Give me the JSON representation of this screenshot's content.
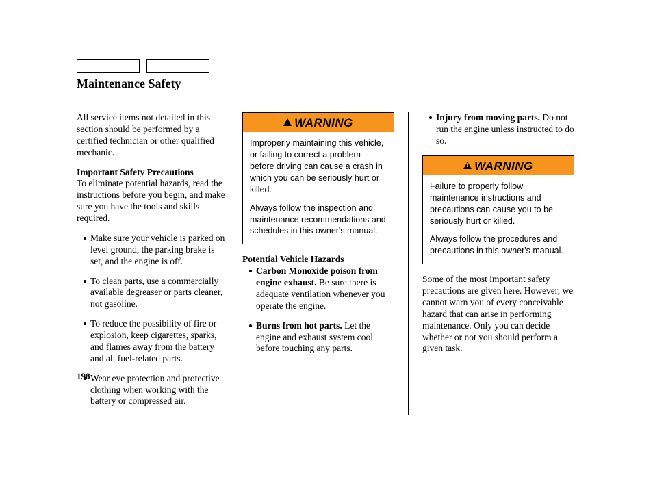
{
  "title": "Maintenance Safety",
  "page_number": "198",
  "colors": {
    "warning_bg": "#f7941d",
    "text": "#000000",
    "page_bg": "#ffffff"
  },
  "col1": {
    "intro": "All service items not detailed in this section should be performed by a certified technician or other qualified mechanic.",
    "precautions_head": "Important Safety Precautions",
    "precautions_body": "To eliminate potential hazards, read the instructions before you begin, and make sure you have the tools and skills required.",
    "bullets": [
      "Make sure your vehicle is parked on level ground, the parking brake is set, and the engine is off.",
      "To clean parts, use a commercially available degreaser or parts cleaner, not gasoline.",
      "To reduce the possibility of fire or explosion, keep cigarettes, sparks, and flames away from the battery and all fuel-related parts.",
      "Wear eye protection and protective clothing when working with the battery or compressed air."
    ]
  },
  "col2": {
    "warning_label": "WARNING",
    "warning_p1": "Improperly maintaining this vehicle, or failing to correct a problem before driving can cause a crash in which you can be seriously hurt or killed.",
    "warning_p2": "Always follow the inspection and maintenance recommendations and schedules in this owner's manual.",
    "hazards_head": "Potential Vehicle Hazards",
    "haz1_bold": "Carbon Monoxide poison from engine exhaust.",
    "haz1_rest": " Be sure there is adequate ventilation whenever you operate the engine.",
    "haz2_bold": "Burns from hot parts.",
    "haz2_rest": " Let the engine and exhaust system cool before touching any parts."
  },
  "col3": {
    "haz3_bold": "Injury from moving parts.",
    "haz3_rest": " Do not run the engine unless instructed to do so.",
    "warning_label": "WARNING",
    "warning_p1": "Failure to properly follow maintenance instructions and precautions can cause you to be seriously hurt or killed.",
    "warning_p2": "Always follow the procedures and precautions in this owner's manual.",
    "closing": "Some of the most important safety precautions are given here. However, we cannot warn you of every conceivable hazard that can arise in performing maintenance. Only you can decide whether or not you should perform a given task."
  }
}
